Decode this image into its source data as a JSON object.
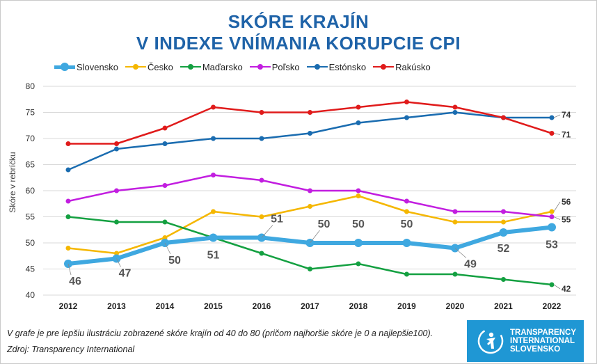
{
  "title": {
    "line1": "SKÓRE KRAJÍN",
    "line2": "V INDEXE VNÍMANIA KORUPCIE CPI"
  },
  "colors": {
    "title": "#1f63a8",
    "grid": "#d9d9d9",
    "logo_bg": "#1f97d4"
  },
  "chart_data": {
    "type": "line",
    "title": "SKÓRE KRAJÍN V INDEXE VNÍMANIA KORUPCIE CPI",
    "xlabel": "",
    "ylabel": "Skóre v rebríčku",
    "categories": [
      "2012",
      "2013",
      "2014",
      "2015",
      "2016",
      "2017",
      "2018",
      "2019",
      "2020",
      "2021",
      "2022"
    ],
    "ylim": [
      40,
      80
    ],
    "yticks": [
      "40",
      "45",
      "50",
      "55",
      "60",
      "65",
      "70",
      "75",
      "80"
    ],
    "grid": true,
    "legend": "top",
    "series": [
      {
        "name": "Slovensko",
        "color": "#3fa8e0",
        "thick": true,
        "values": [
          46,
          47,
          50,
          51,
          51,
          50,
          50,
          50,
          49,
          52,
          53
        ],
        "labels": [
          "46",
          "47",
          "50",
          "51",
          "51",
          "50",
          "50",
          "50",
          "49",
          "52",
          "53"
        ]
      },
      {
        "name": "Česko",
        "color": "#f5b700",
        "values": [
          49,
          48,
          51,
          56,
          55,
          57,
          59,
          56,
          54,
          54,
          56
        ],
        "end_label": "56"
      },
      {
        "name": "Maďarsko",
        "color": "#14a041",
        "values": [
          55,
          54,
          54,
          51,
          48,
          45,
          46,
          44,
          44,
          43,
          42
        ],
        "end_label": "42"
      },
      {
        "name": "Poľsko",
        "color": "#c21ee0",
        "values": [
          58,
          60,
          61,
          63,
          62,
          60,
          60,
          58,
          56,
          56,
          55
        ],
        "end_label": "55"
      },
      {
        "name": "Estónsko",
        "color": "#1a6cb0",
        "values": [
          64,
          68,
          69,
          70,
          70,
          71,
          73,
          74,
          75,
          74,
          74
        ],
        "end_label": "74"
      },
      {
        "name": "Rakúsko",
        "color": "#e01b1b",
        "values": [
          69,
          69,
          72,
          76,
          75,
          75,
          76,
          77,
          76,
          74,
          71
        ],
        "end_label": "71"
      }
    ]
  },
  "footnote": "V grafe je pre lepšiu ilustráciu zobrazené skóre krajín od 40 do 80  (pričom najhoršie skóre je 0 a najlepšie100).",
  "source": "Zdroj: Transparency International",
  "logo": {
    "line1": "TRANSPARENCY",
    "line2": "INTERNATIONAL",
    "line3": "SLOVENSKO"
  }
}
